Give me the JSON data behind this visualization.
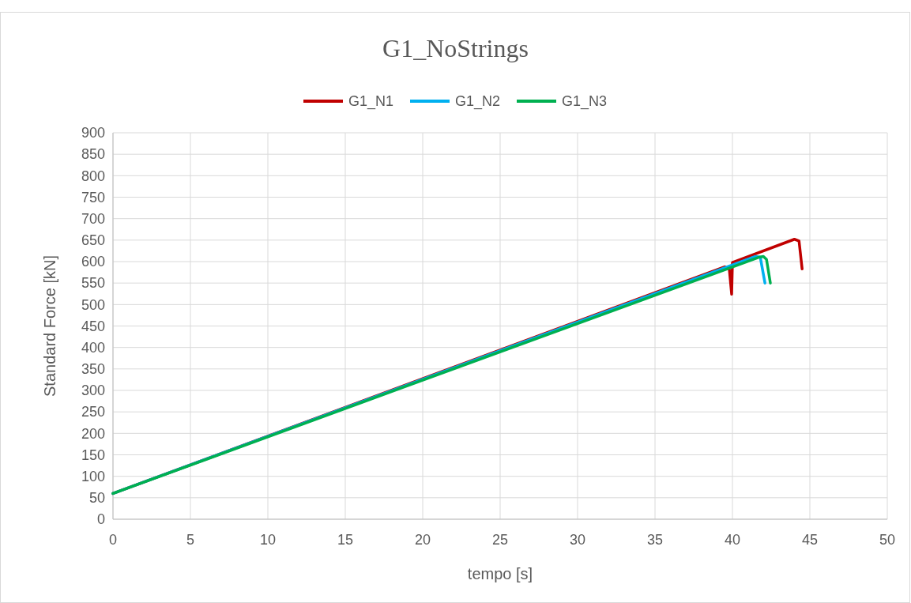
{
  "chart_data": {
    "type": "line",
    "title": "G1_NoStrings",
    "xlabel": "tempo [s]",
    "ylabel": "Standard Force [kN]",
    "xlim": [
      0,
      50
    ],
    "xticks": [
      0,
      5,
      10,
      15,
      20,
      25,
      30,
      35,
      40,
      45,
      50
    ],
    "ylim": [
      0,
      900
    ],
    "yticks": [
      0,
      50,
      100,
      150,
      200,
      250,
      300,
      350,
      400,
      450,
      500,
      550,
      600,
      650,
      700,
      750,
      800,
      850,
      900
    ],
    "grid": true,
    "legend": "top",
    "series": [
      {
        "name": "G1_N1",
        "color": "#c00000",
        "x": [
          0,
          39.5,
          39.8,
          39.95,
          40.0,
          44.0,
          44.3,
          44.5
        ],
        "values": [
          60,
          588,
          582,
          524,
          598,
          652,
          648,
          583
        ]
      },
      {
        "name": "G1_N2",
        "color": "#00b0f0",
        "x": [
          0,
          41.5,
          41.8,
          42.1
        ],
        "values": [
          60,
          612,
          610,
          550
        ]
      },
      {
        "name": "G1_N3",
        "color": "#00b050",
        "x": [
          0,
          41.7,
          42.0,
          42.2,
          42.45
        ],
        "values": [
          60,
          610,
          612,
          605,
          550
        ]
      }
    ]
  }
}
